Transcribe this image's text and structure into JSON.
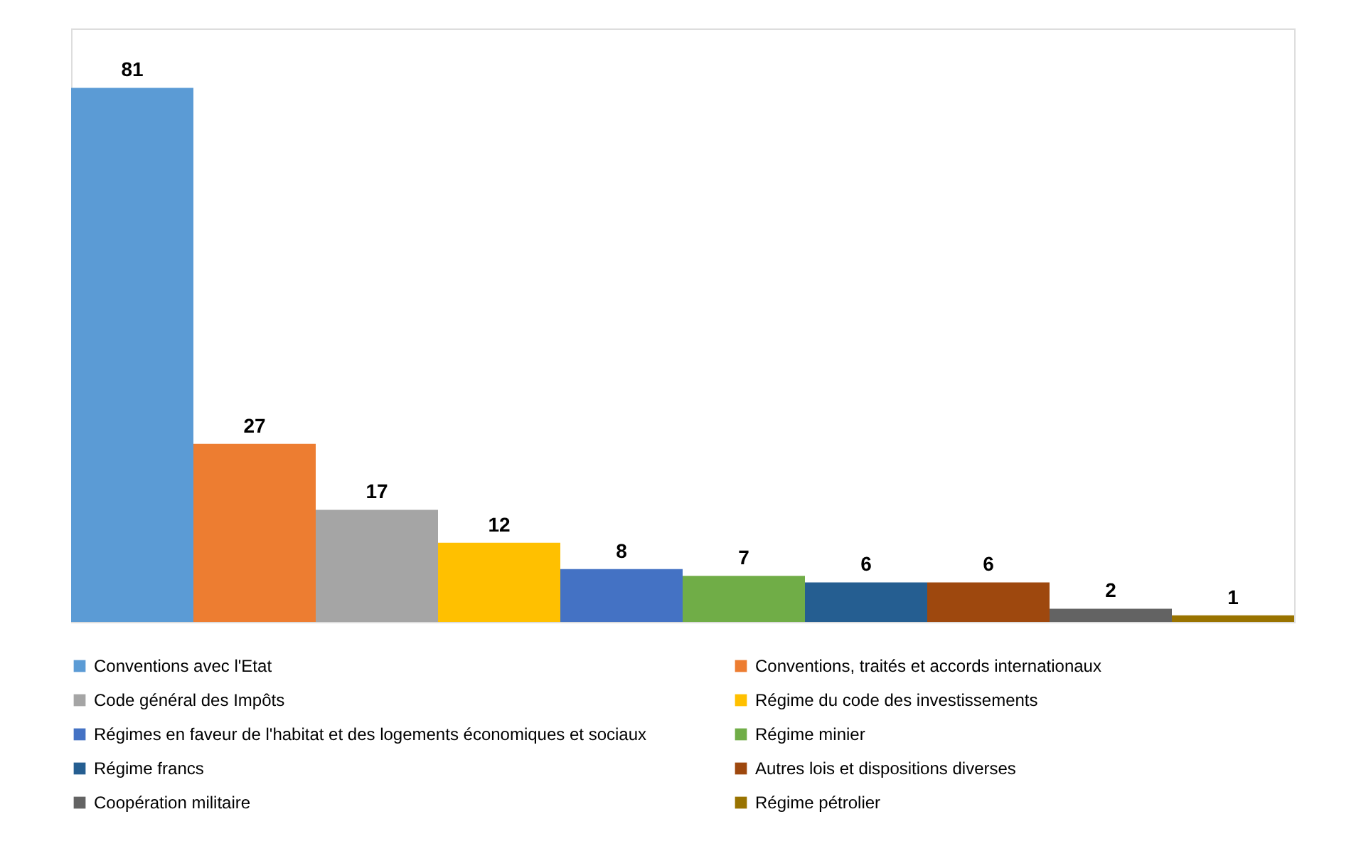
{
  "chart_data": {
    "type": "bar",
    "stacked": true,
    "categories": [
      null,
      null,
      null,
      null,
      null,
      null,
      null,
      null,
      null,
      null
    ],
    "series": [
      {
        "name": "Conventions avec l'Etat",
        "color": "#5b9bd5",
        "values": [
          81,
          null,
          null,
          null,
          null,
          null,
          null,
          null,
          null,
          null
        ]
      },
      {
        "name": "Conventions, traités et accords internationaux",
        "color": "#ed7d31",
        "values": [
          null,
          27,
          null,
          null,
          null,
          null,
          null,
          null,
          null,
          null
        ]
      },
      {
        "name": "Code général des Impôts",
        "color": "#a5a5a5",
        "values": [
          null,
          null,
          17,
          null,
          null,
          null,
          null,
          null,
          null,
          null
        ]
      },
      {
        "name": "Régime du code des investissements",
        "color": "#ffc000",
        "values": [
          null,
          null,
          null,
          12,
          null,
          null,
          null,
          null,
          null,
          null
        ]
      },
      {
        "name": "Régimes en faveur de l'habitat et des logements économiques et sociaux",
        "color": "#4472c4",
        "values": [
          null,
          null,
          null,
          null,
          8,
          null,
          null,
          null,
          null,
          null
        ]
      },
      {
        "name": "Régime minier",
        "color": "#70ad47",
        "values": [
          null,
          null,
          null,
          null,
          null,
          7,
          null,
          null,
          null,
          null
        ]
      },
      {
        "name": "Régime francs",
        "color": "#255e91",
        "values": [
          null,
          null,
          null,
          null,
          null,
          null,
          6,
          null,
          null,
          null
        ]
      },
      {
        "name": "Autres lois et dispositions diverses",
        "color": "#9e480e",
        "values": [
          null,
          null,
          null,
          null,
          null,
          null,
          null,
          6,
          null,
          null
        ]
      },
      {
        "name": "Coopération militaire",
        "color": "#636363",
        "values": [
          null,
          null,
          null,
          null,
          null,
          null,
          null,
          null,
          2,
          null
        ]
      },
      {
        "name": "Régime pétrolier",
        "color": "#997300",
        "values": [
          null,
          null,
          null,
          null,
          null,
          null,
          null,
          null,
          null,
          1
        ]
      }
    ],
    "data_labels": true,
    "legend": "bottom",
    "tick_labels": false
  }
}
